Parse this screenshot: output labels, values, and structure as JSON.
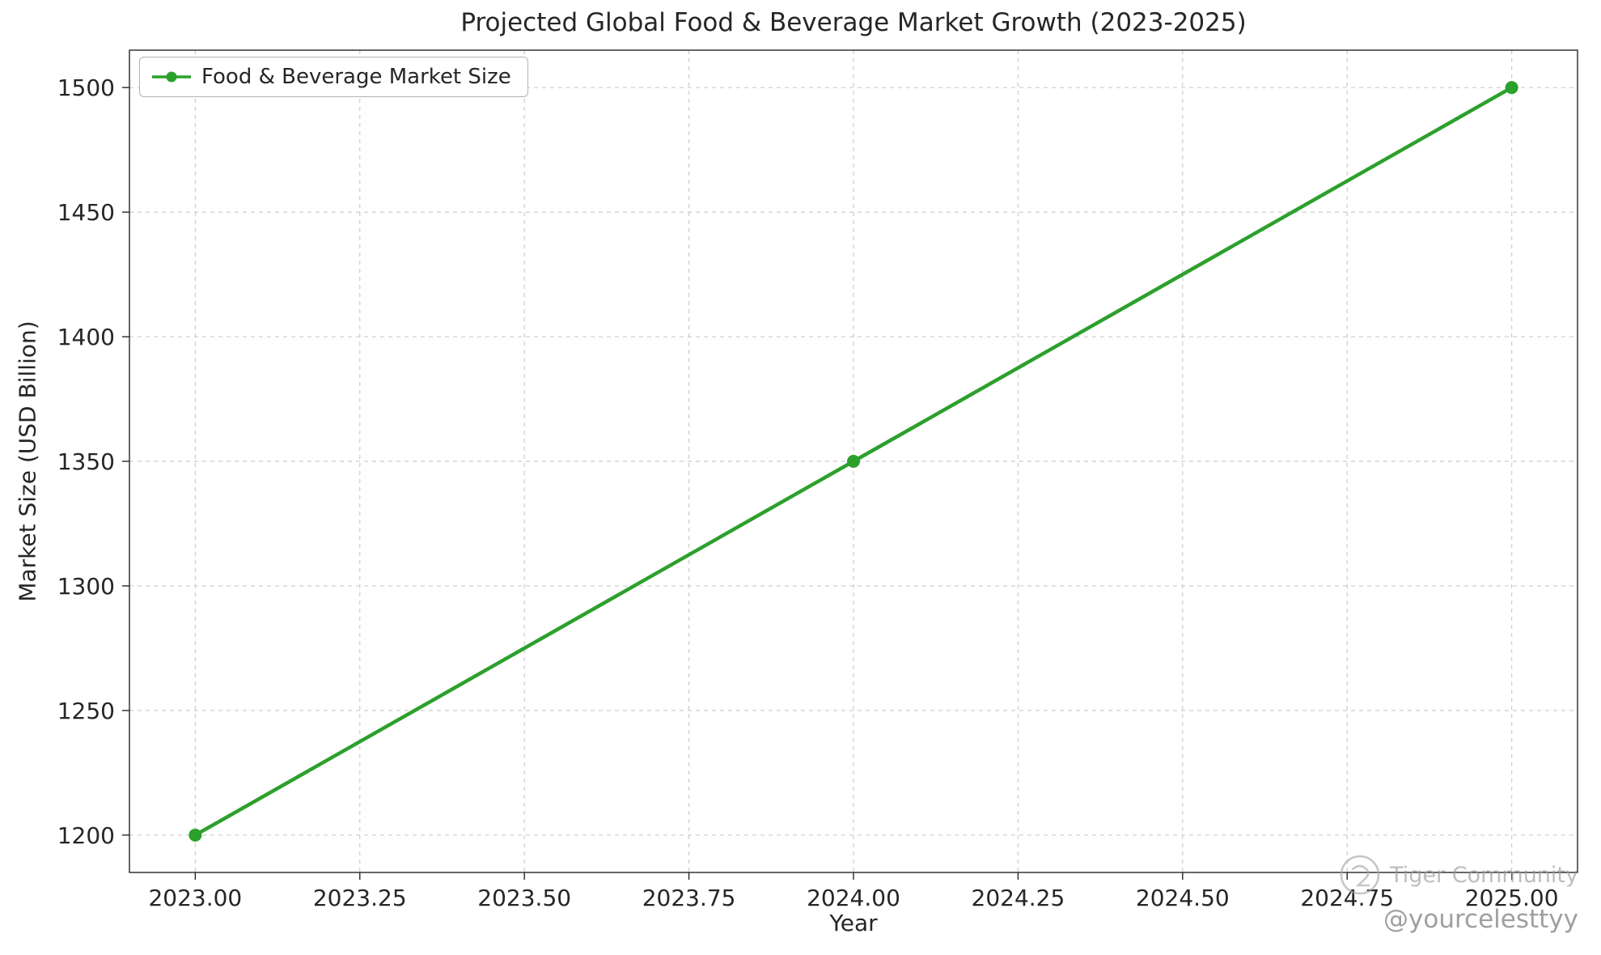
{
  "chart_data": {
    "type": "line",
    "title": "Projected Global Food & Beverage Market Growth (2023-2025)",
    "xlabel": "Year",
    "ylabel": "Market Size (USD Billion)",
    "x": [
      2023,
      2024,
      2025
    ],
    "series": [
      {
        "name": "Food & Beverage Market Size",
        "values": [
          1200,
          1350,
          1500
        ],
        "color": "#2ca02c",
        "marker": "circle"
      }
    ],
    "xlim": [
      2022.9,
      2025.1
    ],
    "ylim": [
      1185,
      1515
    ],
    "xticks": [
      2023.0,
      2023.25,
      2023.5,
      2023.75,
      2024.0,
      2024.25,
      2024.5,
      2024.75,
      2025.0
    ],
    "xtick_labels": [
      "2023.00",
      "2023.25",
      "2023.50",
      "2023.75",
      "2024.00",
      "2024.25",
      "2024.50",
      "2024.75",
      "2025.00"
    ],
    "yticks": [
      1200,
      1250,
      1300,
      1350,
      1400,
      1450,
      1500
    ],
    "ytick_labels": [
      "1200",
      "1250",
      "1300",
      "1350",
      "1400",
      "1450",
      "1500"
    ],
    "grid": true,
    "grid_style": "dashed",
    "legend_position": "upper left"
  },
  "watermark": {
    "brand": "Tiger Community",
    "handle": "@yourcelesttyy"
  },
  "colors": {
    "line": "#2ca02c",
    "grid": "#cccccc",
    "axis": "#262626",
    "tick_text": "#262626",
    "watermark": "#9a9a9a"
  }
}
